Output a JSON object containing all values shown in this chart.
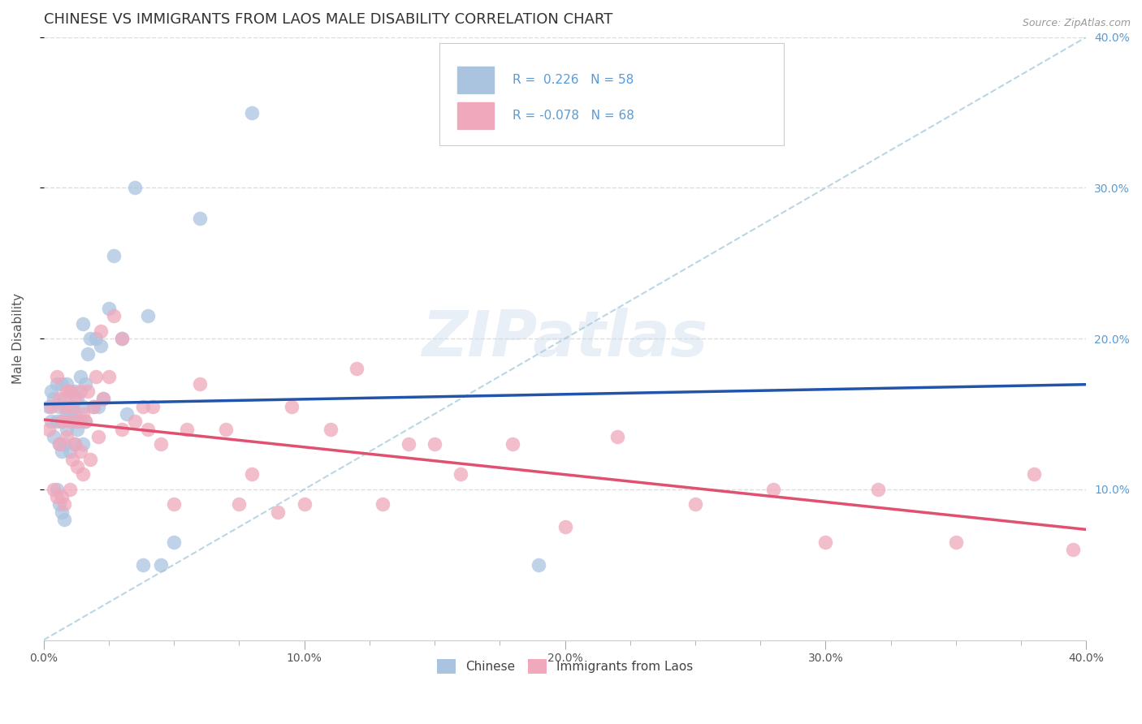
{
  "title": "CHINESE VS IMMIGRANTS FROM LAOS MALE DISABILITY CORRELATION CHART",
  "source": "Source: ZipAtlas.com",
  "ylabel": "Male Disability",
  "xlim": [
    0.0,
    0.4
  ],
  "ylim": [
    0.0,
    0.4
  ],
  "xtick_major": [
    0.0,
    0.1,
    0.2,
    0.3,
    0.4
  ],
  "xtick_minor_step": 0.025,
  "xtick_labels": [
    "0.0%",
    "",
    "",
    "",
    "10.0%",
    "",
    "",
    "",
    "20.0%",
    "",
    "",
    "",
    "30.0%",
    "",
    "",
    "",
    "40.0%"
  ],
  "ytick_vals": [
    0.1,
    0.2,
    0.3,
    0.4
  ],
  "ytick_labels": [
    "10.0%",
    "20.0%",
    "30.0%",
    "40.0%"
  ],
  "background_color": "#ffffff",
  "grid_color": "#dddddd",
  "chinese_color": "#aac4e0",
  "laos_color": "#f0a8bc",
  "chinese_line_color": "#2255aa",
  "laos_line_color": "#e05070",
  "ref_line_color": "#aaccdd",
  "chinese_R": 0.226,
  "chinese_N": 58,
  "laos_R": -0.078,
  "laos_N": 68,
  "legend_entries": [
    "Chinese",
    "Immigrants from Laos"
  ],
  "title_fontsize": 13,
  "label_fontsize": 11,
  "tick_fontsize": 10,
  "right_tick_color": "#5b9bd5",
  "chinese_scatter_x": [
    0.002,
    0.003,
    0.003,
    0.004,
    0.004,
    0.005,
    0.005,
    0.005,
    0.006,
    0.006,
    0.006,
    0.007,
    0.007,
    0.007,
    0.007,
    0.008,
    0.008,
    0.008,
    0.009,
    0.009,
    0.009,
    0.009,
    0.01,
    0.01,
    0.01,
    0.011,
    0.011,
    0.012,
    0.012,
    0.012,
    0.013,
    0.013,
    0.014,
    0.014,
    0.015,
    0.015,
    0.015,
    0.016,
    0.016,
    0.017,
    0.018,
    0.019,
    0.02,
    0.021,
    0.022,
    0.023,
    0.025,
    0.027,
    0.03,
    0.032,
    0.035,
    0.038,
    0.04,
    0.045,
    0.05,
    0.06,
    0.08,
    0.19
  ],
  "chinese_scatter_y": [
    0.155,
    0.145,
    0.165,
    0.135,
    0.16,
    0.1,
    0.145,
    0.17,
    0.09,
    0.13,
    0.155,
    0.085,
    0.125,
    0.145,
    0.17,
    0.08,
    0.13,
    0.16,
    0.14,
    0.15,
    0.155,
    0.17,
    0.125,
    0.15,
    0.165,
    0.145,
    0.155,
    0.13,
    0.15,
    0.165,
    0.14,
    0.16,
    0.145,
    0.175,
    0.13,
    0.155,
    0.21,
    0.145,
    0.17,
    0.19,
    0.2,
    0.155,
    0.2,
    0.155,
    0.195,
    0.16,
    0.22,
    0.255,
    0.2,
    0.15,
    0.3,
    0.05,
    0.215,
    0.05,
    0.065,
    0.28,
    0.35,
    0.05
  ],
  "laos_scatter_x": [
    0.002,
    0.003,
    0.004,
    0.005,
    0.005,
    0.006,
    0.006,
    0.007,
    0.007,
    0.008,
    0.008,
    0.009,
    0.009,
    0.01,
    0.01,
    0.01,
    0.011,
    0.011,
    0.012,
    0.012,
    0.013,
    0.013,
    0.014,
    0.014,
    0.015,
    0.015,
    0.016,
    0.017,
    0.018,
    0.019,
    0.02,
    0.021,
    0.022,
    0.023,
    0.025,
    0.027,
    0.03,
    0.03,
    0.035,
    0.038,
    0.04,
    0.042,
    0.045,
    0.05,
    0.055,
    0.06,
    0.07,
    0.075,
    0.08,
    0.09,
    0.095,
    0.1,
    0.11,
    0.12,
    0.13,
    0.14,
    0.15,
    0.16,
    0.18,
    0.2,
    0.22,
    0.25,
    0.28,
    0.3,
    0.32,
    0.35,
    0.38,
    0.395
  ],
  "laos_scatter_y": [
    0.14,
    0.155,
    0.1,
    0.095,
    0.175,
    0.13,
    0.16,
    0.095,
    0.145,
    0.09,
    0.155,
    0.135,
    0.165,
    0.1,
    0.145,
    0.165,
    0.12,
    0.155,
    0.13,
    0.16,
    0.115,
    0.145,
    0.125,
    0.165,
    0.11,
    0.15,
    0.145,
    0.165,
    0.12,
    0.155,
    0.175,
    0.135,
    0.205,
    0.16,
    0.175,
    0.215,
    0.14,
    0.2,
    0.145,
    0.155,
    0.14,
    0.155,
    0.13,
    0.09,
    0.14,
    0.17,
    0.14,
    0.09,
    0.11,
    0.085,
    0.155,
    0.09,
    0.14,
    0.18,
    0.09,
    0.13,
    0.13,
    0.11,
    0.13,
    0.075,
    0.135,
    0.09,
    0.1,
    0.065,
    0.1,
    0.065,
    0.11,
    0.06
  ]
}
